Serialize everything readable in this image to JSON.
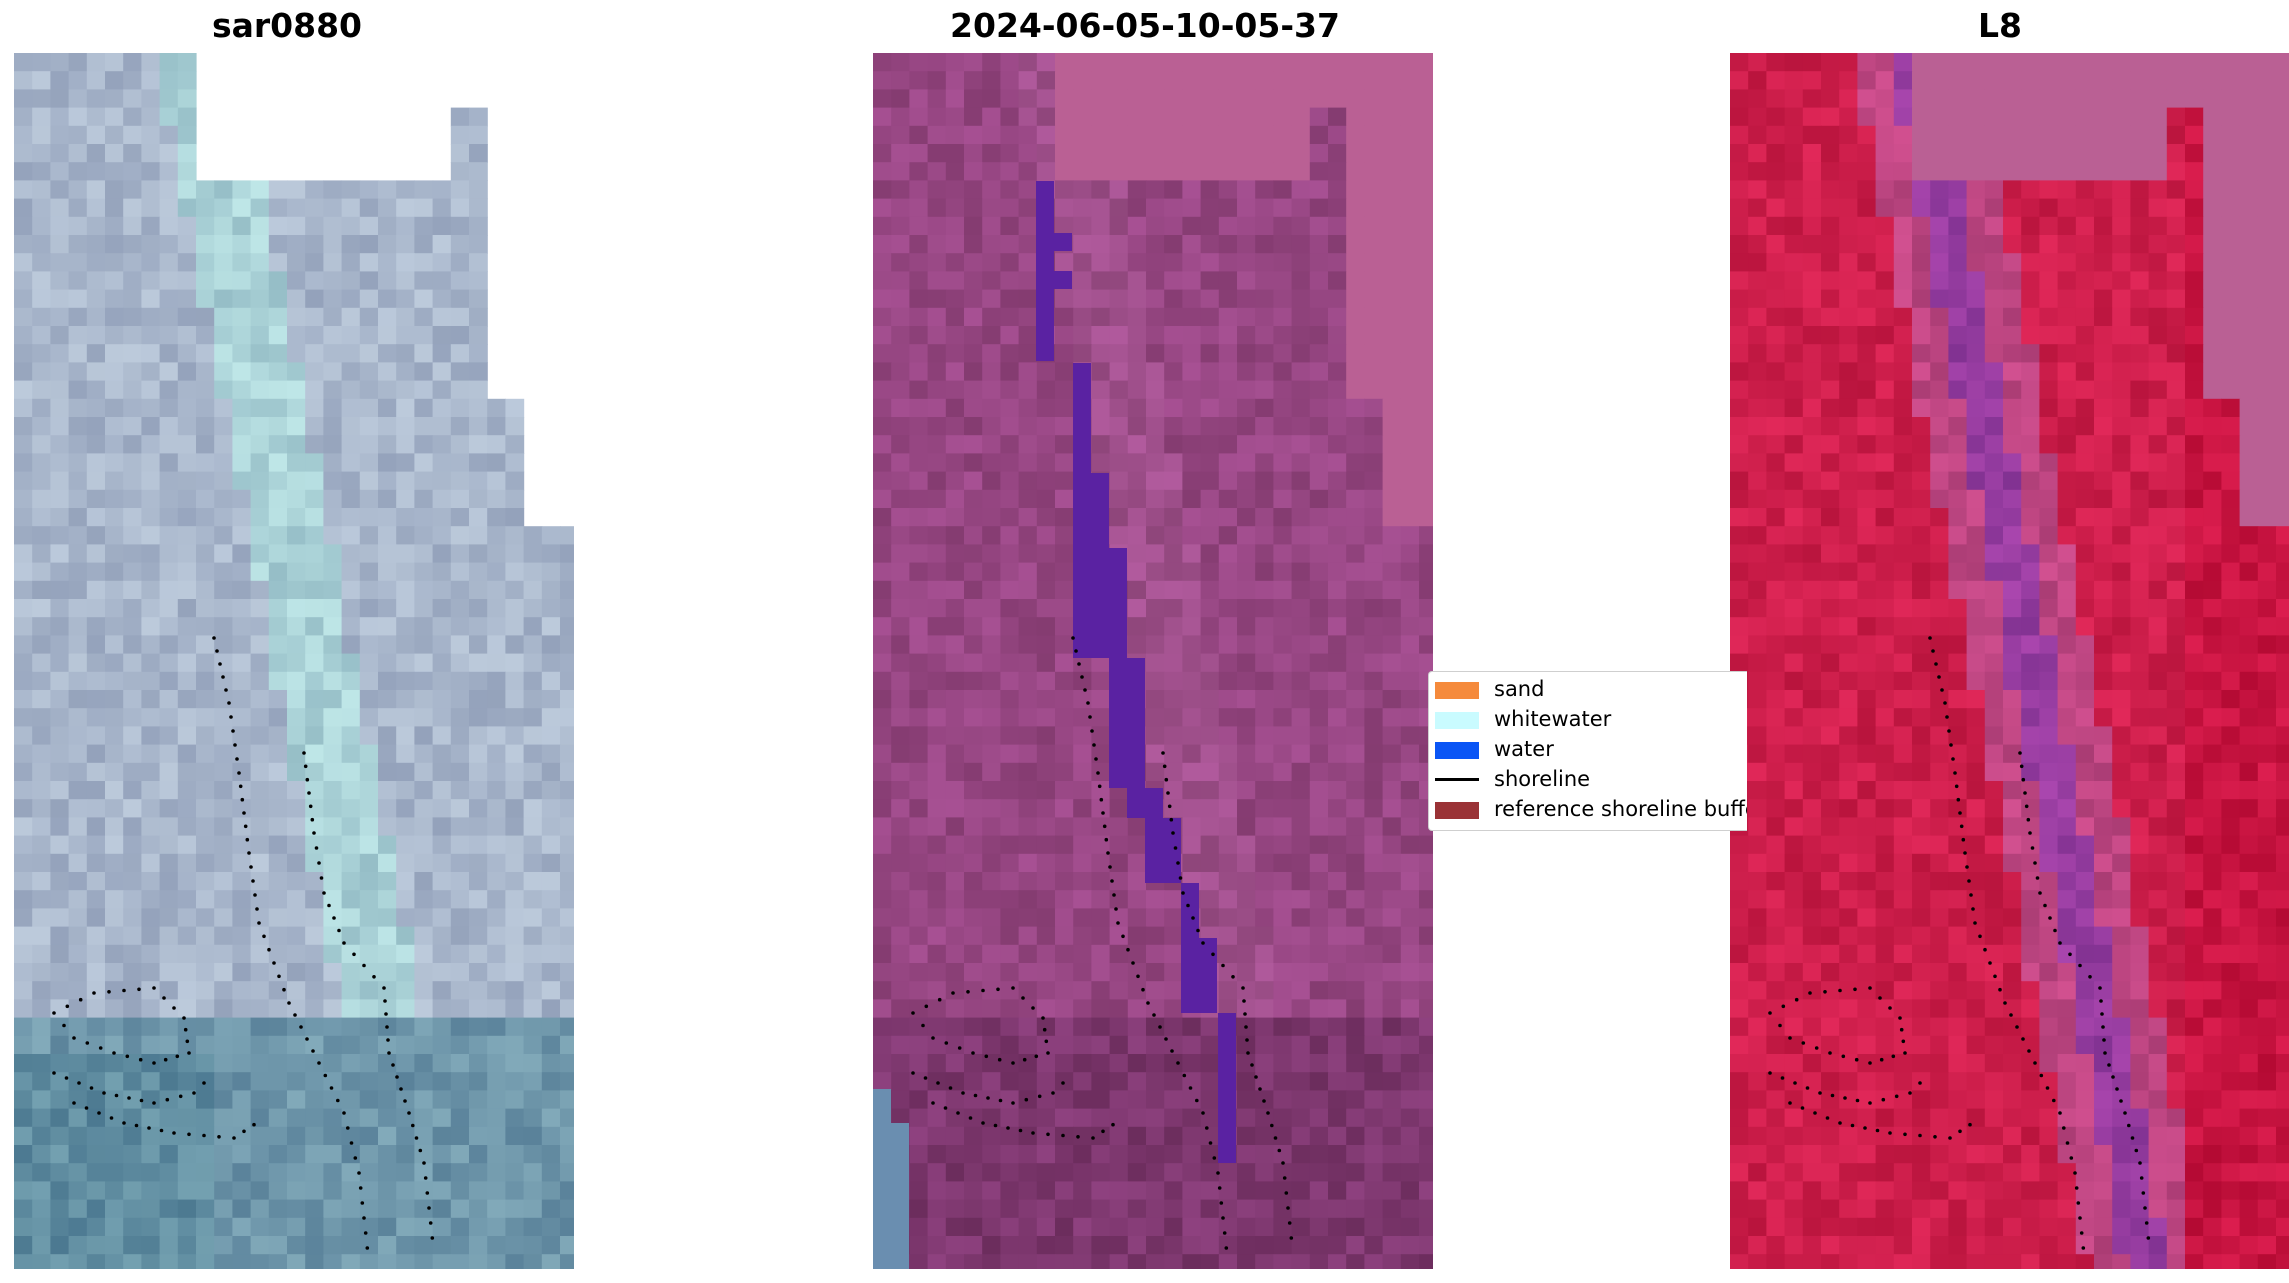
{
  "panels": [
    {
      "title": "sar0880",
      "theme": "rgb"
    },
    {
      "title": "2024-06-05-10-05-37",
      "theme": "classified"
    },
    {
      "title": "L8",
      "theme": "index"
    }
  ],
  "legend": {
    "items": [
      {
        "label": "sand",
        "kind": "patch",
        "color": "#f58a3c"
      },
      {
        "label": "whitewater",
        "kind": "patch",
        "color": "#c9fbff"
      },
      {
        "label": "water",
        "kind": "patch",
        "color": "#0a55f5"
      },
      {
        "label": "shoreline",
        "kind": "line",
        "color": "#000000"
      },
      {
        "label": "reference shoreline buffer",
        "kind": "patch",
        "color": "#9a3236"
      }
    ]
  }
}
